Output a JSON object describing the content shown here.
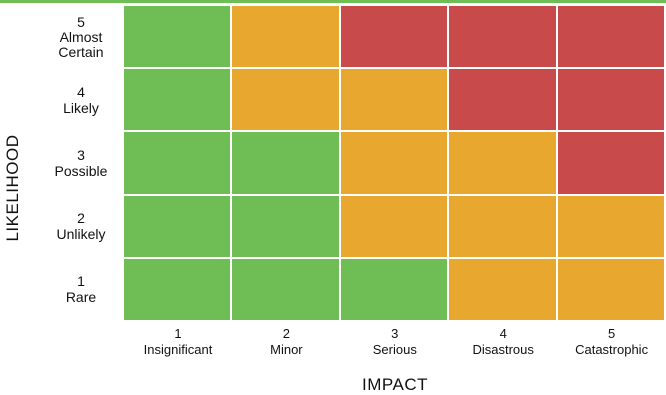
{
  "colors": {
    "low": "#6ebe55",
    "medium": "#e8a72f",
    "high": "#c84a4a",
    "top_rule": "#6ebe55"
  },
  "y_axis_title": "LIKELIHOOD",
  "x_axis_title": "IMPACT",
  "likelihood_levels": [
    {
      "number": "5",
      "label": "Almost Certain"
    },
    {
      "number": "4",
      "label": "Likely"
    },
    {
      "number": "3",
      "label": "Possible"
    },
    {
      "number": "2",
      "label": "Unlikely"
    },
    {
      "number": "1",
      "label": "Rare"
    }
  ],
  "impact_levels": [
    {
      "number": "1",
      "label": "Insignificant"
    },
    {
      "number": "2",
      "label": "Minor"
    },
    {
      "number": "3",
      "label": "Serious"
    },
    {
      "number": "4",
      "label": "Disastrous"
    },
    {
      "number": "5",
      "label": "Catastrophic"
    }
  ],
  "matrix": [
    [
      "low",
      "medium",
      "high",
      "high",
      "high"
    ],
    [
      "low",
      "medium",
      "medium",
      "high",
      "high"
    ],
    [
      "low",
      "low",
      "medium",
      "medium",
      "high"
    ],
    [
      "low",
      "low",
      "medium",
      "medium",
      "medium"
    ],
    [
      "low",
      "low",
      "low",
      "medium",
      "medium"
    ]
  ]
}
